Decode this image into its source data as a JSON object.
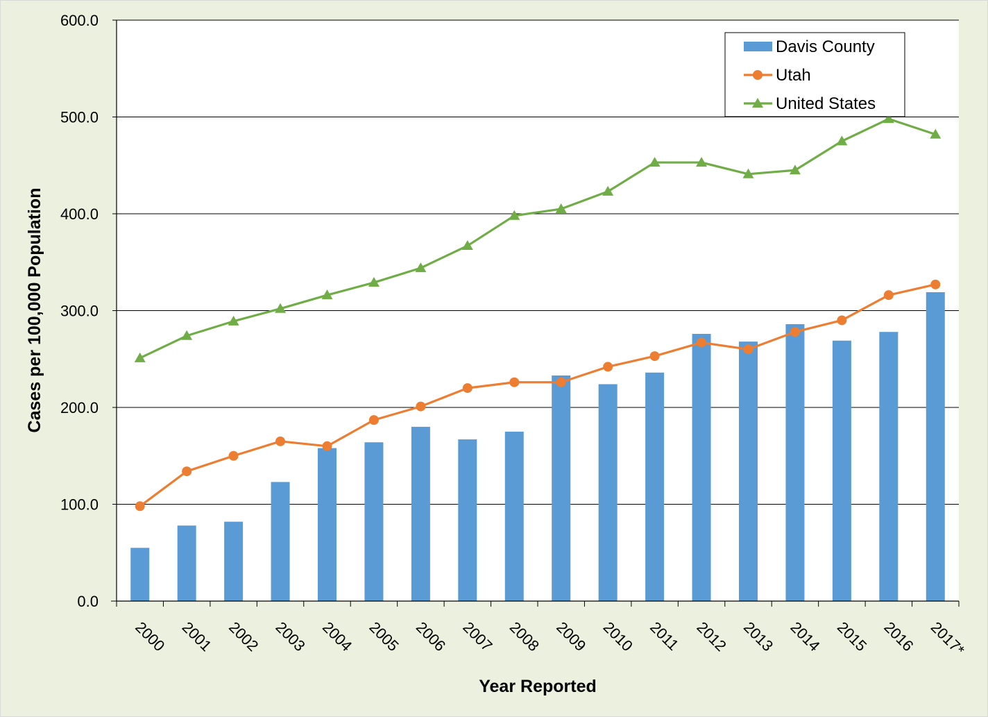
{
  "chart_data": {
    "type": "bar",
    "title": "",
    "xlabel": "Year Reported",
    "ylabel": "Cases per 100,000 Population",
    "ylim": [
      0,
      600
    ],
    "yticks": [
      "0.0",
      "100.0",
      "200.0",
      "300.0",
      "400.0",
      "500.0",
      "600.0"
    ],
    "grid": true,
    "legend_position": "top-right",
    "categories": [
      "2000",
      "2001",
      "2002",
      "2003",
      "2004",
      "2005",
      "2006",
      "2007",
      "2008",
      "2009",
      "2010",
      "2011",
      "2012",
      "2013",
      "2014",
      "2015",
      "2016",
      "2017*"
    ],
    "series": [
      {
        "name": "Davis County",
        "type": "bar",
        "color": "#5B9BD5",
        "values": [
          55,
          78,
          82,
          123,
          158,
          164,
          180,
          167,
          175,
          233,
          224,
          236,
          276,
          268,
          286,
          269,
          278,
          319
        ]
      },
      {
        "name": "Utah",
        "type": "line",
        "marker": "circle",
        "color": "#ED7D31",
        "values": [
          98,
          134,
          150,
          165,
          160,
          187,
          201,
          220,
          226,
          226,
          242,
          253,
          267,
          260,
          278,
          290,
          316,
          327
        ]
      },
      {
        "name": "United States",
        "type": "line",
        "marker": "triangle",
        "color": "#70AD47",
        "values": [
          251,
          274,
          289,
          302,
          316,
          329,
          344,
          367,
          398,
          405,
          423,
          453,
          453,
          441,
          445,
          475,
          498,
          482
        ]
      }
    ],
    "colors": {
      "background": "#EBF1DE",
      "plot_area": "#FFFFFF",
      "grid": "#000000"
    }
  }
}
